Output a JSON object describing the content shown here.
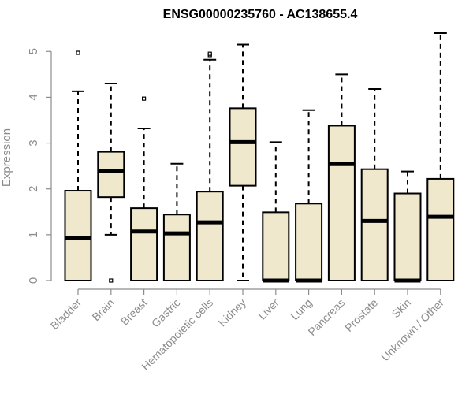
{
  "chart_data": {
    "type": "boxplot",
    "title": "ENSG00000235760 - AC138655.4",
    "xlabel": "",
    "ylabel": "Expression",
    "ylim": [
      0,
      5.4
    ],
    "yticks": [
      0,
      1,
      2,
      3,
      4,
      5
    ],
    "grid": false,
    "legend": "none",
    "box_fill": "#efe8cc",
    "box_stroke": "#000000",
    "categories": [
      "Bladder",
      "Brain",
      "Breast",
      "Gastric",
      "Hematopoietic cells",
      "Kidney",
      "Liver",
      "Lung",
      "Pancreas",
      "Prostate",
      "Skin",
      "Unknown / Other"
    ],
    "boxes": [
      {
        "min": 0,
        "q1": 0,
        "median": 0.93,
        "q3": 1.96,
        "max": 4.13,
        "outliers": [
          4.97
        ]
      },
      {
        "min": 1.0,
        "q1": 1.82,
        "median": 2.4,
        "q3": 2.81,
        "max": 4.3,
        "outliers": [
          0
        ]
      },
      {
        "min": 0,
        "q1": 0,
        "median": 1.07,
        "q3": 1.58,
        "max": 3.32,
        "outliers": [
          3.97
        ]
      },
      {
        "min": 0,
        "q1": 0,
        "median": 1.03,
        "q3": 1.44,
        "max": 2.55,
        "outliers": []
      },
      {
        "min": 0,
        "q1": 0,
        "median": 1.27,
        "q3": 1.94,
        "max": 4.82,
        "outliers": [
          4.92,
          4.95
        ]
      },
      {
        "min": 0,
        "q1": 2.07,
        "median": 3.02,
        "q3": 3.76,
        "max": 5.15,
        "outliers": []
      },
      {
        "min": 0,
        "q1": 0,
        "median": 0,
        "q3": 1.49,
        "max": 3.02,
        "outliers": []
      },
      {
        "min": 0,
        "q1": 0,
        "median": 0,
        "q3": 1.68,
        "max": 3.72,
        "outliers": []
      },
      {
        "min": 0,
        "q1": 0,
        "median": 2.54,
        "q3": 3.38,
        "max": 4.5,
        "outliers": []
      },
      {
        "min": 0,
        "q1": 0,
        "median": 1.3,
        "q3": 2.43,
        "max": 4.18,
        "outliers": []
      },
      {
        "min": 0,
        "q1": 0,
        "median": 0,
        "q3": 1.9,
        "max": 2.38,
        "outliers": []
      },
      {
        "min": 0,
        "q1": 0,
        "median": 1.39,
        "q3": 2.22,
        "max": 5.4,
        "outliers": []
      }
    ]
  }
}
